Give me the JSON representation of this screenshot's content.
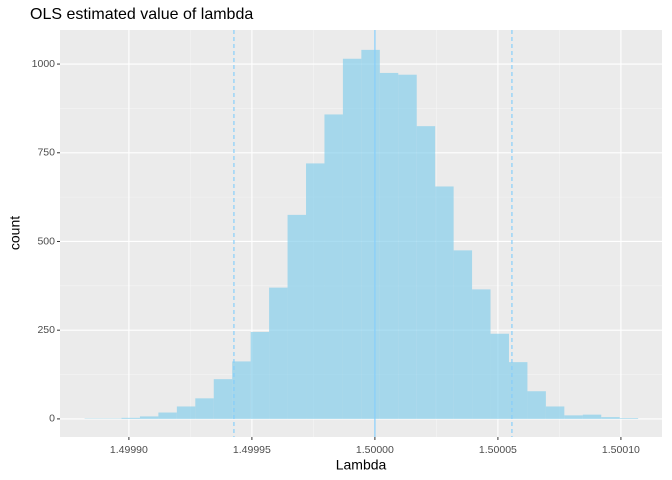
{
  "chart_data": {
    "type": "histogram",
    "title": "OLS estimated value of lambda",
    "x_label": "Lambda",
    "y_label": "count",
    "bins": [
      1.499882,
      1.4998895,
      1.499897,
      1.4999045,
      1.499912,
      1.4999195,
      1.499927,
      1.4999345,
      1.499942,
      1.4999495,
      1.499957,
      1.4999645,
      1.499972,
      1.4999795,
      1.499987,
      1.4999945,
      1.500002,
      1.5000095,
      1.500017,
      1.5000245,
      1.500032,
      1.5000395,
      1.500047,
      1.5000545,
      1.500062,
      1.5000695,
      1.500077,
      1.5000845,
      1.500092,
      1.5000995,
      1.500107
    ],
    "values": [
      1,
      1,
      3,
      7,
      18,
      35,
      58,
      112,
      162,
      245,
      370,
      575,
      720,
      858,
      1015,
      1040,
      975,
      970,
      825,
      655,
      475,
      365,
      240,
      160,
      78,
      35,
      10,
      12,
      5,
      2
    ],
    "color": "#87ceeb",
    "vlines": [
      {
        "value": 1.4999427,
        "dashed": true
      },
      {
        "value": 1.5,
        "dashed": false
      },
      {
        "value": 1.5000557,
        "dashed": true
      }
    ],
    "vline_color": "#87cefa",
    "xlim": [
      1.499872,
      1.5001167
    ],
    "ylim": [
      -51,
      1096
    ],
    "xticks": [
      {
        "value": 1.4999,
        "label": "1.49990"
      },
      {
        "value": 1.49995,
        "label": "1.49995"
      },
      {
        "value": 1.5,
        "label": "1.50000"
      },
      {
        "value": 1.50005,
        "label": "1.50005"
      },
      {
        "value": 1.5001,
        "label": "1.50010"
      }
    ],
    "yticks": [
      0,
      250,
      500,
      750,
      1000
    ],
    "grid": true
  }
}
